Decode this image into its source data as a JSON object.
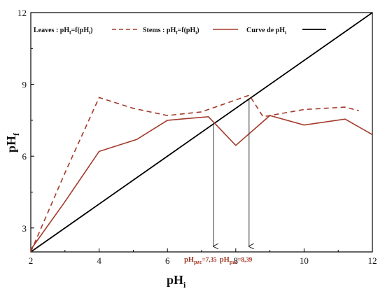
{
  "chart_data": {
    "type": "line",
    "x_axis": {
      "label_main": "pH",
      "label_sub": "i",
      "range": [
        2,
        12
      ],
      "ticks": [
        2,
        4,
        6,
        8,
        10,
        12
      ]
    },
    "y_axis": {
      "label_main": "pH",
      "label_sub": "f",
      "range": [
        2,
        12
      ],
      "ticks": [
        3,
        6,
        9,
        12
      ]
    },
    "grid": false,
    "legend_position": "top",
    "series": [
      {
        "name": "Leaves : pHf=f(pHi)",
        "legend_main": "Leaves : pH",
        "legend_sub1": "f",
        "legend_mid": "=f(pH",
        "legend_sub2": "i",
        "legend_end": ")",
        "style": "dashed",
        "color": "#a33a2a",
        "x": [
          2,
          3,
          4,
          5,
          6,
          7,
          8.4,
          8.8,
          10,
          11.2,
          11.6
        ],
        "y": [
          2,
          5.3,
          8.45,
          8.0,
          7.7,
          7.85,
          8.55,
          7.65,
          7.95,
          8.05,
          7.9
        ]
      },
      {
        "name": "Stems : pHf=f(pHi)",
        "legend_main": "Stems : pH",
        "legend_sub1": "f",
        "legend_mid": "=f(pH",
        "legend_sub2": "i",
        "legend_end": ")",
        "style": "solid",
        "color": "#a33a2a",
        "x": [
          2,
          3,
          4,
          5.1,
          6,
          7.2,
          8,
          9,
          10,
          11.2,
          12
        ],
        "y": [
          2.1,
          4.1,
          6.2,
          6.7,
          7.5,
          7.65,
          6.45,
          7.7,
          7.3,
          7.55,
          6.9
        ]
      },
      {
        "name": "Curve de pHi",
        "legend_main": "Curve de pH",
        "legend_sub1": "i",
        "style": "solid",
        "color": "#000000",
        "x": [
          2,
          12
        ],
        "y": [
          2,
          12
        ]
      }
    ],
    "annotations": [
      {
        "main": "pH",
        "sub": "pzc",
        "value_text": "=7,35",
        "x": 7.35,
        "y_from": 7.35,
        "y_to": 2.0
      },
      {
        "main": "pH",
        "sub": "pzc",
        "value_text": "=8,39",
        "x": 8.39,
        "y_from": 8.39,
        "y_to": 2.0
      }
    ]
  }
}
